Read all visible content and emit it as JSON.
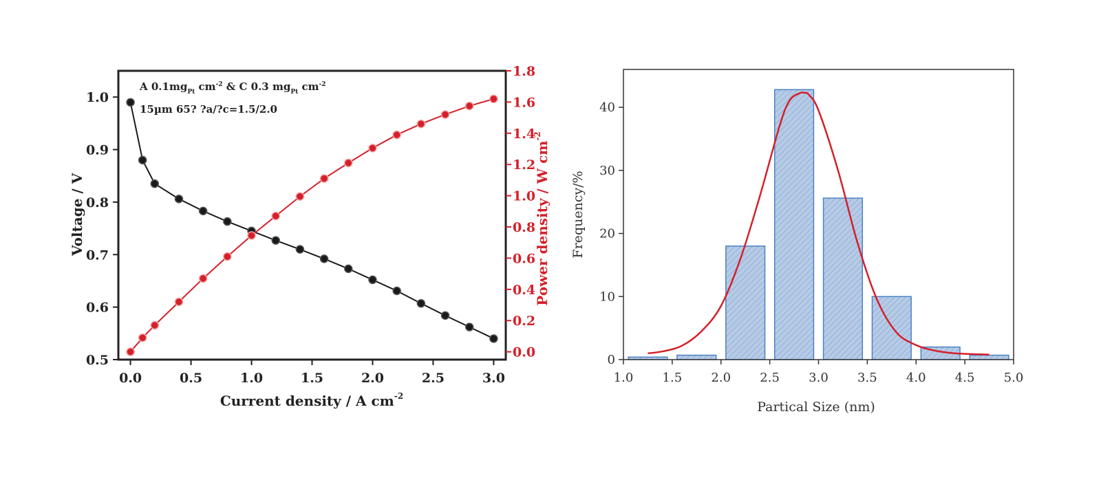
{
  "chart_data": [
    {
      "type": "line",
      "annotation_line1": {
        "prefix": "A 0.1mg",
        "sub1": "Pt",
        "mid1": " cm",
        "sup1": "-2",
        "mid2": " & C 0.3 mg",
        "sub2": "Pt",
        "mid3": " cm",
        "sup2": "-2"
      },
      "annotation_line2": "15µm 65? ?a/?c=1.5/2.0",
      "xlabel": "Current density / A cm",
      "xlabel_sup": "-2",
      "ylabel_left": "Voltage / V",
      "ylabel_right": "Power density / W cm",
      "ylabel_right_sup": "-2",
      "xlim": [
        -0.1,
        3.1
      ],
      "ylim_left": [
        0.5,
        1.05
      ],
      "ylim_right": [
        -0.05,
        1.8
      ],
      "xticks": [
        "0.0",
        "0.5",
        "1.0",
        "1.5",
        "2.0",
        "2.5",
        "3.0"
      ],
      "yticks_left": [
        "0.5",
        "0.6",
        "0.7",
        "0.8",
        "0.9",
        "1.0"
      ],
      "yticks_right": [
        "0.0",
        "0.2",
        "0.4",
        "0.6",
        "0.8",
        "1.0",
        "1.2",
        "1.4",
        "1.6",
        "1.8"
      ],
      "series": [
        {
          "axis": "left",
          "color": "#1a1a1a",
          "x": [
            0.0,
            0.1,
            0.2,
            0.4,
            0.6,
            0.8,
            1.0,
            1.2,
            1.4,
            1.6,
            1.8,
            2.0,
            2.2,
            2.4,
            2.6,
            2.8,
            3.0
          ],
          "y": [
            0.99,
            0.88,
            0.835,
            0.806,
            0.783,
            0.763,
            0.745,
            0.727,
            0.71,
            0.692,
            0.673,
            0.652,
            0.631,
            0.607,
            0.584,
            0.562,
            0.54
          ]
        },
        {
          "axis": "right",
          "color": "#d4202a",
          "x": [
            0.0,
            0.1,
            0.2,
            0.4,
            0.6,
            0.8,
            1.0,
            1.2,
            1.4,
            1.6,
            1.8,
            2.0,
            2.2,
            2.4,
            2.6,
            2.8,
            3.0
          ],
          "y": [
            0.0,
            0.09,
            0.17,
            0.32,
            0.47,
            0.61,
            0.745,
            0.87,
            0.995,
            1.11,
            1.21,
            1.305,
            1.39,
            1.46,
            1.52,
            1.575,
            1.62
          ]
        }
      ]
    },
    {
      "type": "bar",
      "xlabel": "Partical Size (nm)",
      "ylabel": "Frequency/%",
      "xlim": [
        1.0,
        5.0
      ],
      "ylim": [
        0,
        46
      ],
      "xticks": [
        "1.0",
        "1.5",
        "2.0",
        "2.5",
        "3.0",
        "3.5",
        "4.0",
        "4.5",
        "5.0"
      ],
      "yticks": [
        "0",
        "10",
        "20",
        "30",
        "40"
      ],
      "bar_color": "#b7cbe6",
      "bar_edge": "#4a82c4",
      "fit_color": "#d4202a",
      "bins": [
        {
          "from": 1.05,
          "to": 1.45,
          "value": 0.4
        },
        {
          "from": 1.55,
          "to": 1.95,
          "value": 0.7
        },
        {
          "from": 2.05,
          "to": 2.45,
          "value": 18
        },
        {
          "from": 2.55,
          "to": 2.95,
          "value": 42.8
        },
        {
          "from": 3.05,
          "to": 3.45,
          "value": 25.6
        },
        {
          "from": 3.55,
          "to": 3.95,
          "value": 10
        },
        {
          "from": 4.05,
          "to": 4.45,
          "value": 2
        },
        {
          "from": 4.55,
          "to": 4.95,
          "value": 0.7
        }
      ],
      "fit": {
        "x": [
          1.25,
          1.4,
          1.6,
          1.8,
          2.0,
          2.2,
          2.4,
          2.6,
          2.7,
          2.8,
          2.85,
          2.9,
          3.0,
          3.2,
          3.4,
          3.6,
          3.8,
          4.0,
          4.2,
          4.4,
          4.75
        ],
        "y": [
          1.0,
          1.3,
          2.2,
          4.5,
          8.5,
          16,
          26,
          37,
          41,
          42.2,
          42.3,
          42,
          39.5,
          30,
          18.5,
          9.5,
          4.3,
          2.3,
          1.4,
          1.0,
          0.8
        ]
      }
    }
  ]
}
